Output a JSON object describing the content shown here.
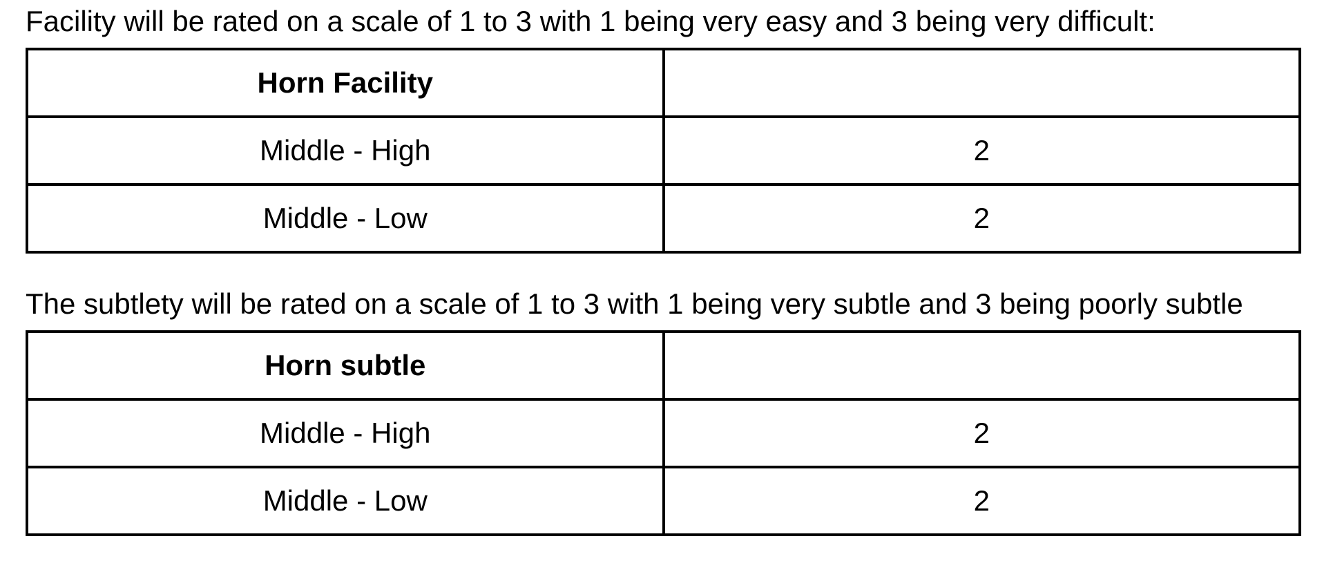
{
  "page": {
    "background_color": "#ffffff",
    "text_color": "#000000",
    "border_color": "#000000"
  },
  "facility_section": {
    "intro": "Facility will be rated on a scale of 1 to 3 with 1 being very easy and 3 being very difficult:",
    "table": {
      "header": "Horn Facility",
      "header_value": "",
      "rows": [
        {
          "label": "Middle - High",
          "value": "2"
        },
        {
          "label": "Middle - Low",
          "value": "2"
        }
      ]
    }
  },
  "subtlety_section": {
    "intro": "The subtlety will be rated on a scale of 1 to 3 with 1 being very subtle and 3 being poorly subtle",
    "table": {
      "header": "Horn subtle",
      "header_value": "",
      "rows": [
        {
          "label": "Middle - High",
          "value": "2"
        },
        {
          "label": "Middle - Low",
          "value": "2"
        }
      ]
    }
  }
}
